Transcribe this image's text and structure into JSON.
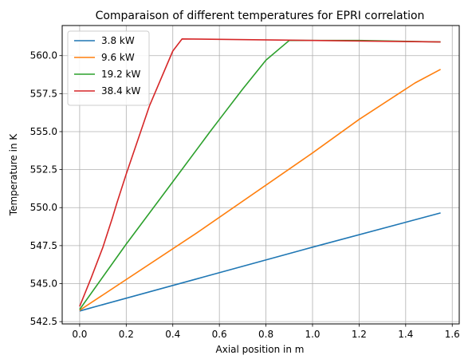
{
  "chart_data": {
    "type": "line",
    "title": "Comparaison of different temperatures for EPRI correlation",
    "xlabel": "Axial position in m",
    "ylabel": "Temperature in K",
    "xlim": [
      -0.075,
      1.63
    ],
    "ylim": [
      542.35,
      561.98
    ],
    "xticks": [
      0.0,
      0.2,
      0.4,
      0.6,
      0.8,
      1.0,
      1.2,
      1.4,
      1.6
    ],
    "yticks": [
      542.5,
      545.0,
      547.5,
      550.0,
      552.5,
      555.0,
      557.5,
      560.0
    ],
    "grid": true,
    "legend_position": "top-left",
    "series": [
      {
        "name": "3.8 kW",
        "color": "#1f77b4",
        "points": [
          [
            0.0,
            543.2
          ],
          [
            0.5,
            545.3
          ],
          [
            1.0,
            547.4
          ],
          [
            1.55,
            549.65
          ]
        ]
      },
      {
        "name": "9.6 kW",
        "color": "#ff7f0e",
        "points": [
          [
            0.0,
            543.25
          ],
          [
            0.5,
            548.3
          ],
          [
            1.0,
            553.6
          ],
          [
            1.2,
            555.8
          ],
          [
            1.44,
            558.2
          ],
          [
            1.55,
            559.1
          ]
        ]
      },
      {
        "name": "19.2 kW",
        "color": "#2ca02c",
        "points": [
          [
            0.0,
            543.3
          ],
          [
            0.2,
            547.6
          ],
          [
            0.4,
            551.7
          ],
          [
            0.56,
            555.0
          ],
          [
            0.6,
            555.8
          ],
          [
            0.7,
            557.8
          ],
          [
            0.8,
            559.7
          ],
          [
            0.9,
            561.0
          ],
          [
            1.2,
            561.0
          ],
          [
            1.55,
            560.9
          ]
        ]
      },
      {
        "name": "38.4 kW",
        "color": "#d62728",
        "points": [
          [
            0.0,
            543.5
          ],
          [
            0.05,
            545.4
          ],
          [
            0.1,
            547.4
          ],
          [
            0.14,
            549.3
          ],
          [
            0.16,
            550.3
          ],
          [
            0.2,
            552.2
          ],
          [
            0.3,
            556.7
          ],
          [
            0.4,
            560.3
          ],
          [
            0.44,
            561.1
          ],
          [
            1.0,
            561.0
          ],
          [
            1.55,
            560.9
          ]
        ]
      }
    ]
  }
}
